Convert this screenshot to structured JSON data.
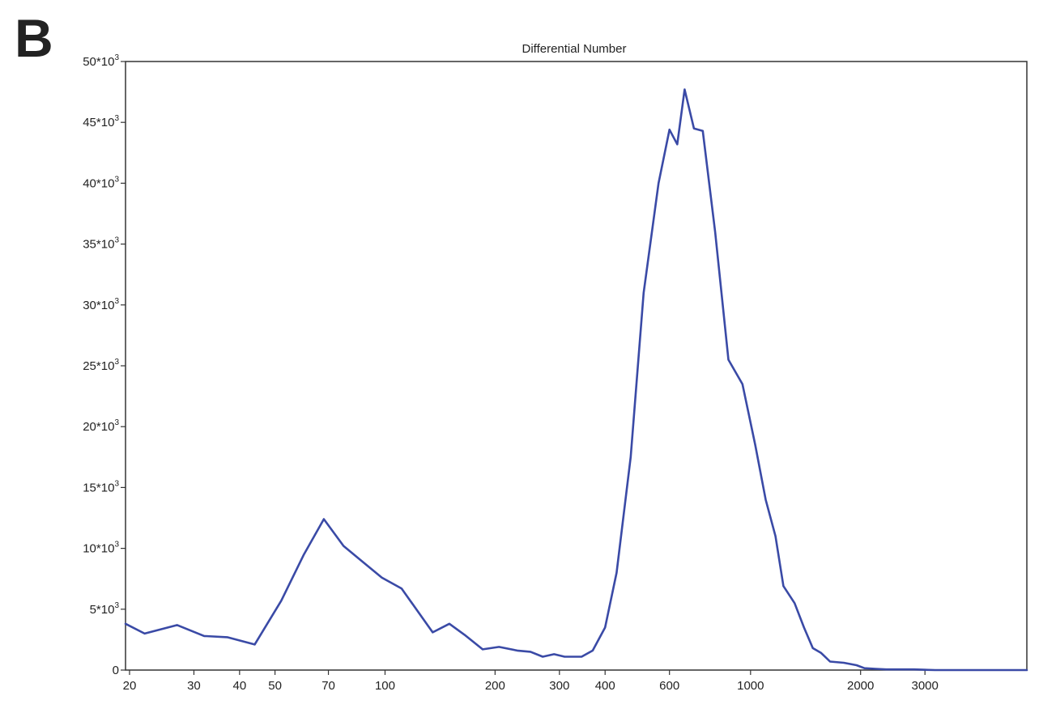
{
  "panel_label": "B",
  "chart_data": {
    "type": "line",
    "title": "Differential Number",
    "xlabel": "",
    "ylabel": "",
    "x_scale": "log",
    "xlim": [
      19.5,
      5700
    ],
    "ylim": [
      0,
      50000
    ],
    "grid": false,
    "legend": "none",
    "x_ticks": [
      {
        "value": 20,
        "label": "20"
      },
      {
        "value": 30,
        "label": "30"
      },
      {
        "value": 40,
        "label": "40"
      },
      {
        "value": 50,
        "label": "50"
      },
      {
        "value": 70,
        "label": "70"
      },
      {
        "value": 100,
        "label": "100"
      },
      {
        "value": 200,
        "label": "200"
      },
      {
        "value": 300,
        "label": "300"
      },
      {
        "value": 400,
        "label": "400"
      },
      {
        "value": 600,
        "label": "600"
      },
      {
        "value": 1000,
        "label": "1000"
      },
      {
        "value": 2000,
        "label": "2000"
      },
      {
        "value": 3000,
        "label": "3000"
      }
    ],
    "y_ticks": [
      {
        "value": 0,
        "label": "0"
      },
      {
        "value": 5000,
        "label": "5*10",
        "sup": "3"
      },
      {
        "value": 10000,
        "label": "10*10",
        "sup": "3"
      },
      {
        "value": 15000,
        "label": "15*10",
        "sup": "3"
      },
      {
        "value": 20000,
        "label": "20*10",
        "sup": "3"
      },
      {
        "value": 25000,
        "label": "25*10",
        "sup": "3"
      },
      {
        "value": 30000,
        "label": "30*10",
        "sup": "3"
      },
      {
        "value": 35000,
        "label": "35*10",
        "sup": "3"
      },
      {
        "value": 40000,
        "label": "40*10",
        "sup": "3"
      },
      {
        "value": 45000,
        "label": "45*10",
        "sup": "3"
      },
      {
        "value": 50000,
        "label": "50*10",
        "sup": "3"
      }
    ],
    "series": [
      {
        "color": "#3a4aa6",
        "x": [
          19.5,
          22,
          27,
          32,
          37,
          44,
          52,
          60,
          68,
          77,
          86,
          98,
          111,
          135,
          150,
          165,
          185,
          205,
          230,
          250,
          270,
          290,
          310,
          345,
          370,
          400,
          430,
          470,
          510,
          560,
          600,
          630,
          660,
          700,
          740,
          800,
          870,
          950,
          1030,
          1100,
          1170,
          1230,
          1320,
          1400,
          1480,
          1560,
          1650,
          1800,
          1950,
          2050,
          2200,
          2350,
          2600,
          2800,
          3200,
          4000,
          5700
        ],
        "y": [
          3800,
          3000,
          3700,
          2800,
          2700,
          2100,
          5700,
          9500,
          12400,
          10200,
          9000,
          7600,
          6700,
          3100,
          3800,
          2900,
          1700,
          1900,
          1600,
          1500,
          1100,
          1300,
          1100,
          1100,
          1600,
          3500,
          8000,
          17500,
          31000,
          40000,
          44400,
          43200,
          47700,
          44500,
          44300,
          36000,
          25500,
          23500,
          18500,
          14000,
          11000,
          6900,
          5500,
          3500,
          1800,
          1400,
          700,
          600,
          400,
          150,
          100,
          50,
          50,
          50,
          0,
          0,
          0
        ]
      }
    ]
  }
}
